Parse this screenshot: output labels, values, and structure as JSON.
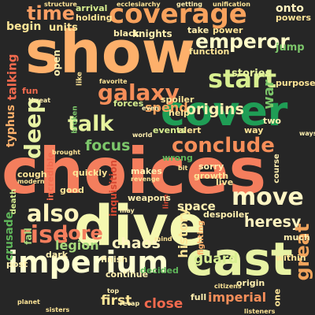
{
  "words": {
    "choices": "choices",
    "show": "show",
    "dive": "dive",
    "cover": "cover",
    "cast": "cast",
    "imperium": "imperium",
    "coverage": "coverage",
    "conclude": "conclude",
    "galaxy": "galaxy",
    "start": "start",
    "emperor": "emperor",
    "also": "also",
    "move": "move",
    "talk": "talk",
    "rise": "rise",
    "time": "time",
    "lore": "lore",
    "deep": "deep",
    "focus": "focus",
    "origins": "origins",
    "great": "great",
    "heresy": "heresy",
    "legion": "legion",
    "chaos": "chaos",
    "crusade": "crusade",
    "spend": "spend",
    "guard": "guard",
    "first": "first",
    "close": "close",
    "imperial": "imperial",
    "space": "space",
    "stories": "stories",
    "onto": "onto",
    "history": "history",
    "typhus": "typhus",
    "talking": "talking",
    "war": "war",
    "knights": "knights",
    "jump": "jump",
    "begin": "begin",
    "units": "units",
    "open": "open",
    "black": "black",
    "take": "take",
    "powers": "powers",
    "arrival": "arrival",
    "holding": "holding",
    "ecclesiarchy": "ecclesiarchy",
    "getting": "getting",
    "unification": "unification",
    "structure": "structure",
    "weapons": "weapons",
    "inquisition": "inquisition",
    "despoiler": "despoiler",
    "finish": "finish",
    "incredible": "incredible",
    "decided": "decided",
    "fighting": "fighting",
    "growth": "growth",
    "sorry": "sorry",
    "live": "live",
    "course": "course",
    "citizens": "citizens",
    "sisters": "sisters",
    "planet": "planet",
    "recap": "recap",
    "origin": "origin",
    "purpose": "purpose",
    "fun": "fun",
    "spoiler": "spoiler",
    "alert": "alert",
    "events": "events",
    "forces": "forces",
    "broken": "broken",
    "line": "line",
    "dark": "dark",
    "death": "death",
    "fall": "fall",
    "cough": "cough",
    "modern": "modern",
    "good": "good",
    "makes": "makes",
    "revenge": "revenge",
    "quickly": "quickly",
    "wrong": "wrong",
    "help": "help",
    "two": "two",
    "way": "way",
    "even": "even",
    "world": "world",
    "mind": "mind",
    "post": "post",
    "full": "full",
    "top": "top",
    "continue": "continue",
    "brought": "brought",
    "threat": "threat",
    "function": "function",
    "power": "power",
    "like": "like",
    "favorite": "favorite",
    "ways": "ways",
    "much": "much",
    "within": "within",
    "listeners": "listeners",
    "one": "one",
    "bit": "bit",
    "may": "may"
  }
}
